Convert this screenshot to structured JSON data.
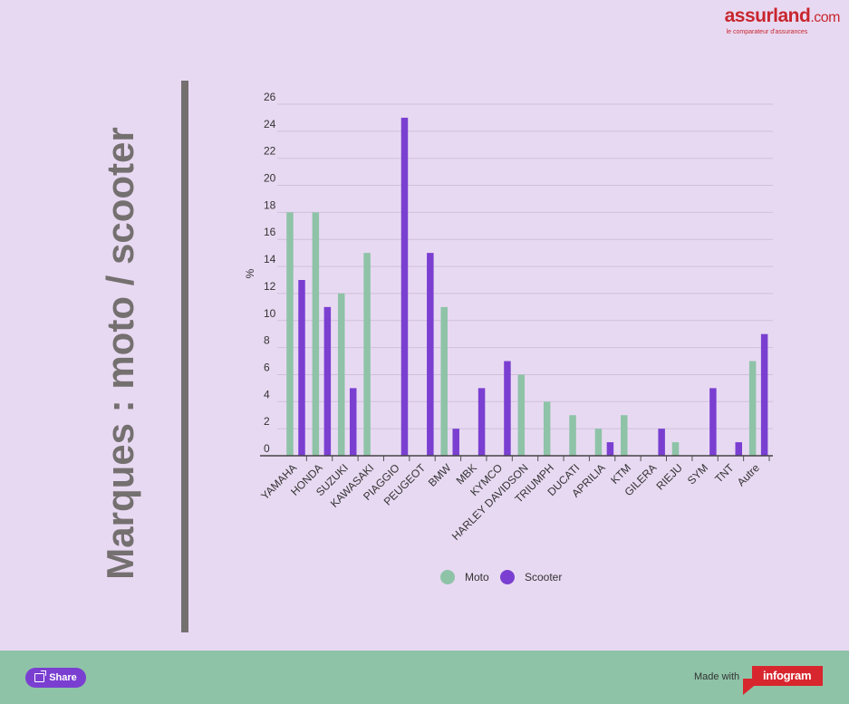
{
  "logo": {
    "brand_main": "assurland",
    "brand_suffix": ".com",
    "tagline": "le comparateur d'assurances"
  },
  "title": "Marques : moto / scooter",
  "footer": {
    "share_label": "Share",
    "made_with": "Made with",
    "infogram": "infogram"
  },
  "colors": {
    "moto": "#8ec3a7",
    "scooter": "#7a3fd1",
    "background": "#e8d9f2",
    "title": "#757070"
  },
  "chart_data": {
    "type": "bar",
    "title": "",
    "xlabel": "",
    "ylabel": "%",
    "ylim": [
      0,
      26
    ],
    "yticks": [
      0,
      2,
      4,
      6,
      8,
      10,
      12,
      14,
      16,
      18,
      20,
      22,
      24,
      26
    ],
    "grid": true,
    "legend": "bottom-center",
    "categories": [
      "YAMAHA",
      "HONDA",
      "SUZUKI",
      "KAWASAKI",
      "PIAGGIO",
      "PEUGEOT",
      "BMW",
      "MBK",
      "KYMCO",
      "HARLEY DAVIDSON",
      "TRIUMPH",
      "DUCATI",
      "APRILIA",
      "KTM",
      "GILERA",
      "RIEJU",
      "SYM",
      "TNT",
      "Autre"
    ],
    "series": [
      {
        "name": "Moto",
        "values": [
          18,
          18,
          12,
          15,
          0,
          0,
          11,
          0,
          0,
          6,
          4,
          3,
          2,
          3,
          0,
          1,
          0,
          0,
          7
        ]
      },
      {
        "name": "Scooter",
        "values": [
          13,
          11,
          5,
          0,
          25,
          15,
          2,
          5,
          7,
          0,
          0,
          0,
          1,
          0,
          2,
          0,
          5,
          1,
          9
        ]
      }
    ]
  }
}
